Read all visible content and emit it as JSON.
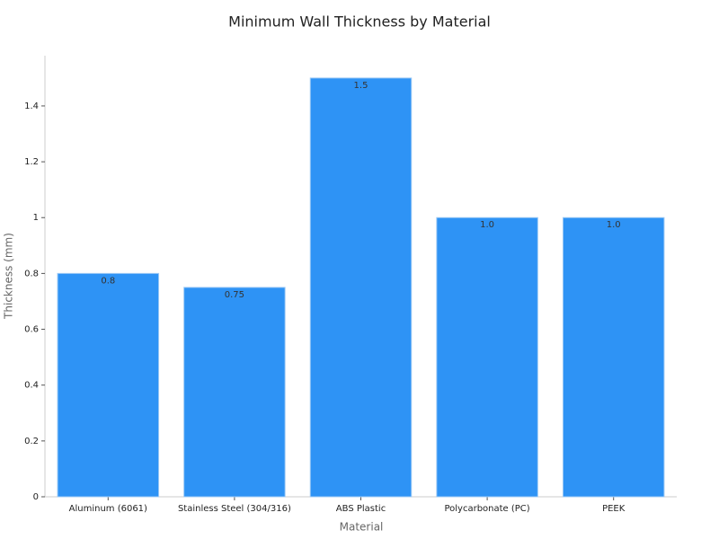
{
  "chart_data": {
    "type": "bar",
    "title": "Minimum Wall Thickness by Material",
    "x_label": "Material",
    "y_label": "Thickness (mm)",
    "categories": [
      "Aluminum (6061)",
      "Stainless Steel (304/316)",
      "ABS Plastic",
      "Polycarbonate (PC)",
      "PEEK"
    ],
    "values": [
      0.8,
      0.75,
      1.5,
      1,
      1
    ],
    "value_labels": [
      "0.8",
      "0.75",
      "1.5",
      "1.0",
      "1.0"
    ],
    "color": "#2e93f5",
    "ylim": [
      0,
      1.58
    ],
    "yticks": [
      0,
      0.2,
      0.4,
      0.6,
      0.8,
      1,
      1.2,
      1.4
    ],
    "grid": false
  }
}
